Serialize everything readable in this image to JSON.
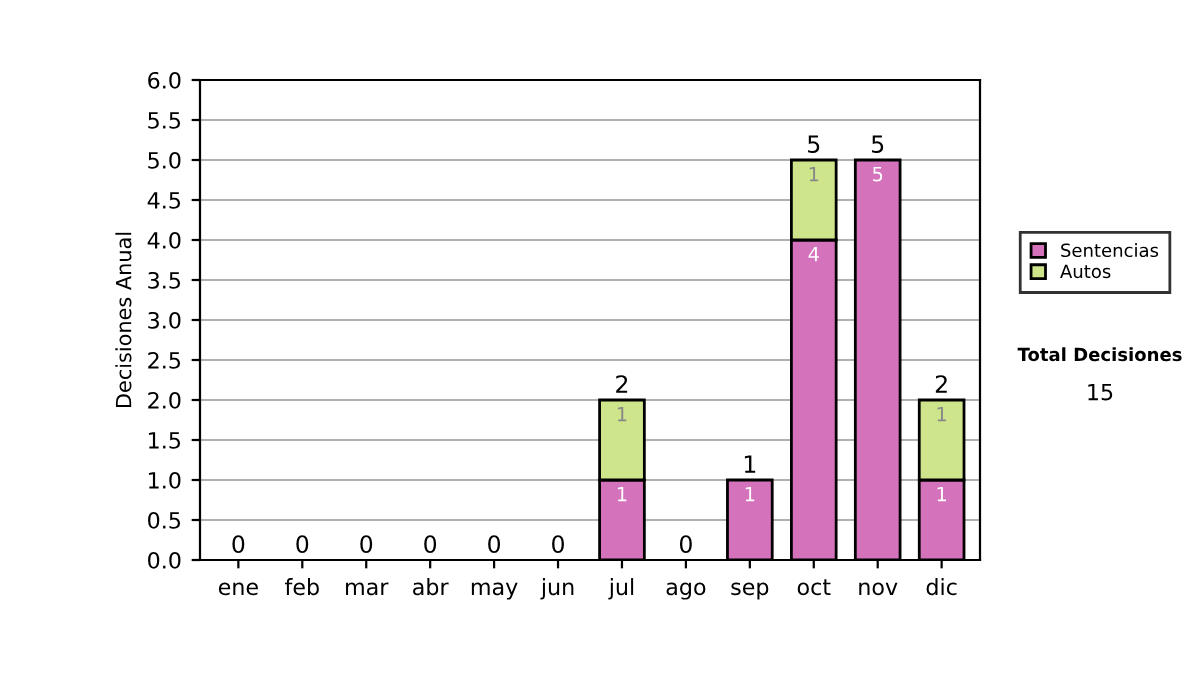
{
  "chart_data": {
    "type": "bar",
    "stacked": true,
    "ylabel": "Decisiones Anual",
    "categories": [
      "ene",
      "feb",
      "mar",
      "abr",
      "may",
      "jun",
      "jul",
      "ago",
      "sep",
      "oct",
      "nov",
      "dic"
    ],
    "series": [
      {
        "name": "Sentencias",
        "color": "#d472bc",
        "values": [
          0,
          0,
          0,
          0,
          0,
          0,
          1,
          0,
          1,
          4,
          5,
          1
        ],
        "value_labels": [
          null,
          null,
          null,
          null,
          null,
          null,
          "1",
          null,
          "1",
          "4",
          "5",
          "1"
        ]
      },
      {
        "name": "Autos",
        "color": "#cfe58c",
        "values": [
          0,
          0,
          0,
          0,
          0,
          0,
          1,
          0,
          0,
          1,
          0,
          1
        ],
        "value_labels": [
          null,
          null,
          null,
          null,
          null,
          null,
          "1",
          null,
          null,
          "1",
          null,
          "1"
        ]
      }
    ],
    "totals": [
      "0",
      "0",
      "0",
      "0",
      "0",
      "0",
      "2",
      "0",
      "1",
      "5",
      "5",
      "2"
    ],
    "ylim": [
      0,
      6
    ],
    "yticks": [
      {
        "value": 0,
        "label": "0.0"
      },
      {
        "value": 0.5,
        "label": "0.5"
      },
      {
        "value": 1,
        "label": "1.0"
      },
      {
        "value": 1.5,
        "label": "1.5"
      },
      {
        "value": 2,
        "label": "2.0"
      },
      {
        "value": 2.5,
        "label": "2.5"
      },
      {
        "value": 3,
        "label": "3.0"
      },
      {
        "value": 3.5,
        "label": "3.5"
      },
      {
        "value": 4,
        "label": "4.0"
      },
      {
        "value": 4.5,
        "label": "4.5"
      },
      {
        "value": 5,
        "label": "5.0"
      },
      {
        "value": 5.5,
        "label": "5.5"
      },
      {
        "value": 6,
        "label": "6.0"
      }
    ],
    "grid": "y",
    "legend": "right",
    "annotations": [
      "Total Decisiones",
      "15"
    ]
  }
}
